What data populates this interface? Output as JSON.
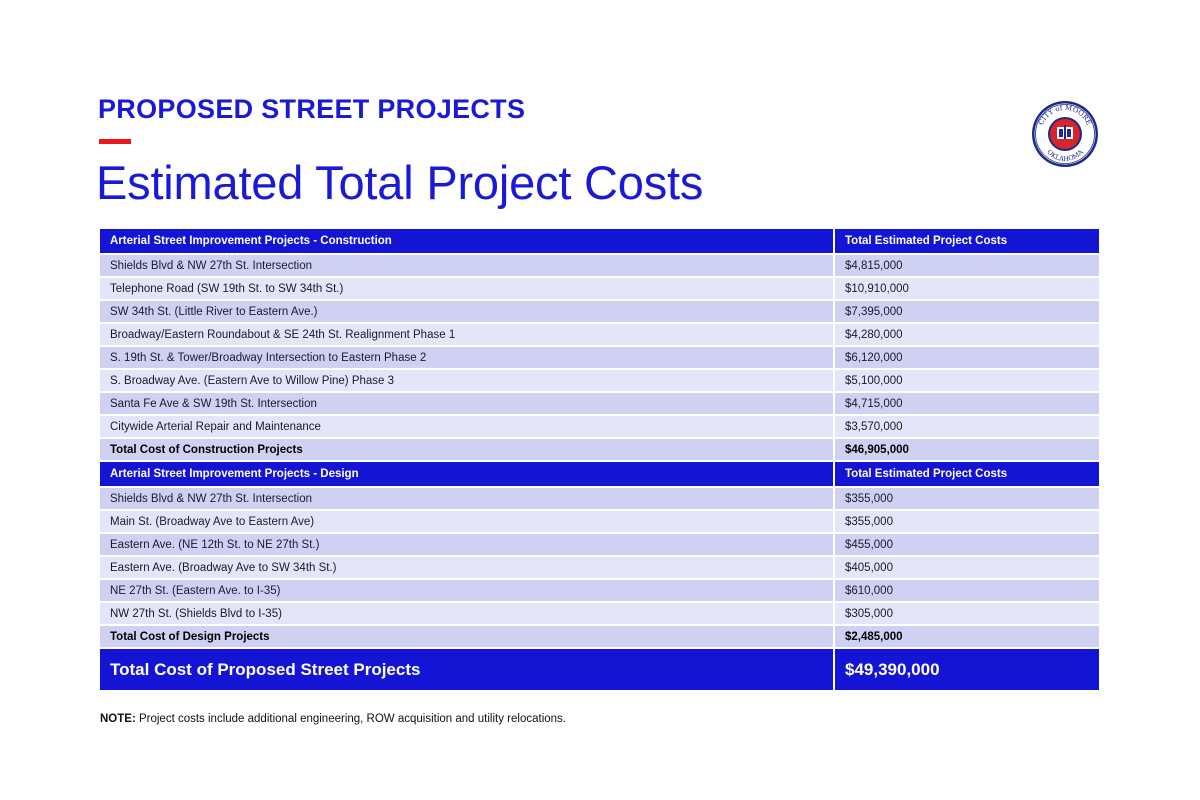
{
  "header": {
    "kicker": "PROPOSED STREET PROJECTS",
    "title": "Estimated Total Project Costs",
    "seal": {
      "top_text": "CITY of MOORE",
      "bottom_text": "OKLAHOMA"
    }
  },
  "colors": {
    "brand_blue": "#1414d4",
    "accent_red": "#e8191d",
    "row_dark": "#cfd1f3",
    "row_light": "#e4e5f8"
  },
  "construction": {
    "header": [
      "Arterial Street Improvement Projects - Construction",
      "Total Estimated Project Costs"
    ],
    "rows": [
      [
        "Shields Blvd & NW 27th St. Intersection",
        "$4,815,000"
      ],
      [
        "Telephone Road  (SW 19th St. to SW 34th St.)",
        "$10,910,000"
      ],
      [
        "SW 34th St. (Little River to Eastern Ave.)",
        "$7,395,000"
      ],
      [
        "Broadway/Eastern Roundabout & SE 24th St. Realignment Phase 1",
        "$4,280,000"
      ],
      [
        "S. 19th St. & Tower/Broadway Intersection to Eastern Phase 2",
        "$6,120,000"
      ],
      [
        "S. Broadway Ave. (Eastern Ave to Willow Pine) Phase 3",
        "$5,100,000"
      ],
      [
        "Santa Fe Ave & SW 19th St. Intersection",
        "$4,715,000"
      ],
      [
        "Citywide Arterial Repair and Maintenance",
        "$3,570,000"
      ]
    ],
    "total": [
      "Total Cost of Construction Projects",
      "$46,905,000"
    ]
  },
  "design": {
    "header": [
      "Arterial Street Improvement Projects - Design",
      "Total Estimated Project Costs"
    ],
    "rows": [
      [
        "Shields Blvd & NW 27th St. Intersection",
        "$355,000"
      ],
      [
        "Main St. (Broadway Ave to Eastern Ave)",
        "$355,000"
      ],
      [
        "Eastern Ave. (NE 12th St. to NE 27th St.)",
        "$455,000"
      ],
      [
        "Eastern Ave. (Broadway Ave to SW 34th St.)",
        "$405,000"
      ],
      [
        "NE 27th St. (Eastern Ave. to I-35)",
        "$610,000"
      ],
      [
        "NW 27th St. (Shields Blvd to I-35)",
        "$305,000"
      ]
    ],
    "total": [
      "Total Cost of Design Projects",
      "$2,485,000"
    ]
  },
  "grand_total": [
    "Total Cost of Proposed Street Projects",
    "$49,390,000"
  ],
  "note": {
    "label": "NOTE:",
    "text": " Project costs include additional engineering, ROW acquisition and utility relocations."
  }
}
